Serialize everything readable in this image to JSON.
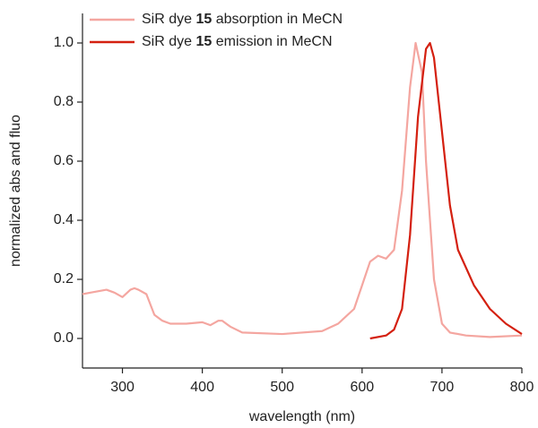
{
  "chart_data": {
    "type": "line",
    "x_label": "wavelength (nm)",
    "y_label": "normalized abs and fluo",
    "xlim": [
      250,
      800
    ],
    "ylim": [
      -0.1,
      1.1
    ],
    "xticks": [
      300,
      400,
      500,
      600,
      700,
      800
    ],
    "yticks": [
      {
        "value": 0,
        "label": "0.0"
      },
      {
        "value": 0.2,
        "label": "0.2"
      },
      {
        "value": 0.4,
        "label": "0.4"
      },
      {
        "value": 0.6,
        "label": "0.6"
      },
      {
        "value": 0.8,
        "label": "0.8"
      },
      {
        "value": 1.0,
        "label": "1.0"
      }
    ],
    "legend": "top-left",
    "series": [
      {
        "name": "SiR dye 15 absorption in MeCN",
        "color": "#f4a6a0",
        "x": [
          250,
          260,
          270,
          280,
          290,
          300,
          310,
          315,
          320,
          330,
          340,
          350,
          360,
          380,
          400,
          410,
          420,
          425,
          435,
          450,
          500,
          550,
          570,
          590,
          600,
          610,
          620,
          630,
          640,
          650,
          660,
          667,
          675,
          680,
          690,
          700,
          710,
          730,
          760,
          800
        ],
        "values": [
          0.15,
          0.155,
          0.16,
          0.165,
          0.155,
          0.14,
          0.165,
          0.17,
          0.165,
          0.15,
          0.08,
          0.06,
          0.05,
          0.05,
          0.055,
          0.045,
          0.06,
          0.06,
          0.04,
          0.02,
          0.015,
          0.025,
          0.05,
          0.1,
          0.18,
          0.26,
          0.28,
          0.27,
          0.3,
          0.5,
          0.85,
          1.0,
          0.9,
          0.6,
          0.2,
          0.05,
          0.02,
          0.01,
          0.005,
          0.01
        ]
      },
      {
        "name": "SiR dye 15 emission in MeCN",
        "color": "#d42010",
        "x": [
          610,
          630,
          640,
          650,
          660,
          670,
          680,
          685,
          690,
          700,
          710,
          720,
          740,
          760,
          780,
          800
        ],
        "values": [
          0.0,
          0.01,
          0.03,
          0.1,
          0.35,
          0.75,
          0.98,
          1.0,
          0.95,
          0.7,
          0.45,
          0.3,
          0.18,
          0.1,
          0.05,
          0.015
        ]
      }
    ]
  }
}
